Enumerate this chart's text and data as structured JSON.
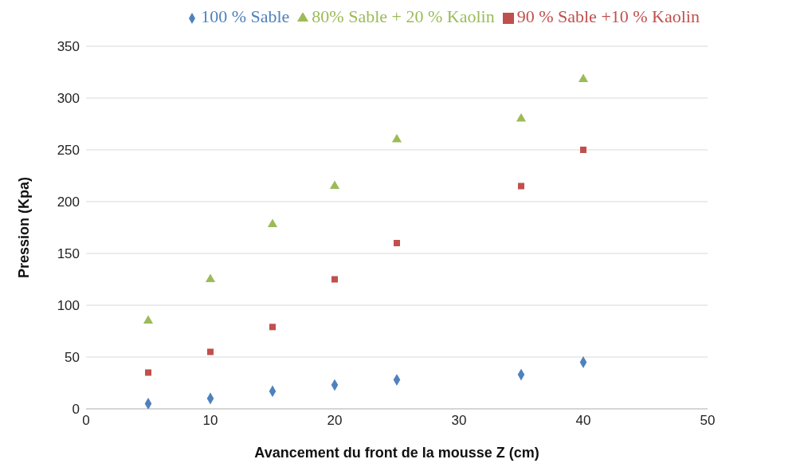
{
  "chart_data": {
    "type": "scatter",
    "xlabel": "Avancement du front de la mousse Z (cm)",
    "ylabel": "Pression (Kpa)",
    "x": [
      5,
      10,
      15,
      20,
      25,
      35,
      40
    ],
    "series": [
      {
        "name": "100 % Sable",
        "color": "#4f81bd",
        "marker": "diamond",
        "values": [
          5,
          10,
          17,
          23,
          28,
          33,
          45
        ]
      },
      {
        "name": "90 % Sable +10 % Kaolin",
        "color": "#c0504d",
        "marker": "square",
        "values": [
          35,
          55,
          79,
          125,
          160,
          215,
          250
        ]
      },
      {
        "name": "80% Sable + 20 % Kaolin",
        "color": "#9bbb59",
        "marker": "triangle",
        "values": [
          85,
          125,
          178,
          215,
          260,
          280,
          318
        ]
      }
    ],
    "xlim": [
      0,
      50
    ],
    "xticks": [
      0,
      10,
      20,
      30,
      40,
      50
    ],
    "ylim": [
      0,
      350
    ],
    "yticks": [
      0,
      50,
      100,
      150,
      200,
      250,
      300,
      350
    ],
    "grid": "y",
    "legend": "top"
  }
}
